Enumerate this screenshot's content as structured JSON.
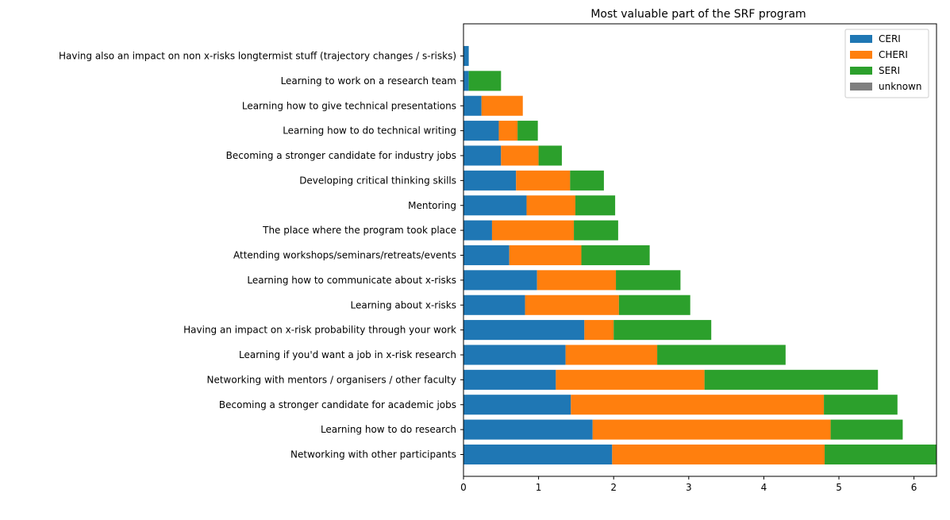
{
  "chart_data": {
    "type": "bar",
    "orientation": "horizontal",
    "stacked": true,
    "title": "Most valuable part of the SRF program",
    "xlabel": "",
    "ylabel": "",
    "xlim": [
      0,
      6.3
    ],
    "xticks": [
      0,
      1,
      2,
      3,
      4,
      5,
      6
    ],
    "grid": false,
    "legend_position": "top-right",
    "categories": [
      "Networking with other participants",
      "Learning how to do research",
      "Becoming a stronger candidate for academic jobs",
      "Networking with mentors / organisers / other faculty",
      "Learning if you'd want a job in x-risk research",
      "Having an impact on x-risk probability through your work",
      "Learning about x-risks",
      "Learning how to communicate about x-risks",
      "Attending workshops/seminars/retreats/events",
      "The place where the program took place",
      "Mentoring",
      "Developing critical thinking skills",
      "Becoming a stronger candidate for industry jobs",
      "Learning how to do technical writing",
      "Learning how to give technical presentations",
      "Learning to work on a research team",
      "Having also an impact on non x-risks longtermist stuff (trajectory changes / s-risks)"
    ],
    "series": [
      {
        "name": "CERI",
        "color": "#1f77b4",
        "values": [
          1.98,
          1.72,
          1.43,
          1.23,
          1.36,
          1.61,
          0.82,
          0.98,
          0.61,
          0.38,
          0.84,
          0.7,
          0.5,
          0.47,
          0.24,
          0.07,
          0.07
        ]
      },
      {
        "name": "CHERI",
        "color": "#ff7f0e",
        "values": [
          2.83,
          3.17,
          3.37,
          1.98,
          1.22,
          0.39,
          1.25,
          1.05,
          0.96,
          1.09,
          0.65,
          0.72,
          0.5,
          0.25,
          0.55,
          0.0,
          0.0
        ]
      },
      {
        "name": "SERI",
        "color": "#2ca02c",
        "values": [
          1.49,
          0.96,
          0.98,
          2.31,
          1.71,
          1.3,
          0.95,
          0.86,
          0.91,
          0.59,
          0.53,
          0.45,
          0.31,
          0.27,
          0.0,
          0.43,
          0.0
        ]
      },
      {
        "name": "unknown",
        "color": "#7f7f7f",
        "values": [
          0,
          0,
          0,
          0,
          0,
          0,
          0,
          0,
          0,
          0,
          0,
          0,
          0,
          0,
          0,
          0,
          0
        ]
      }
    ]
  }
}
